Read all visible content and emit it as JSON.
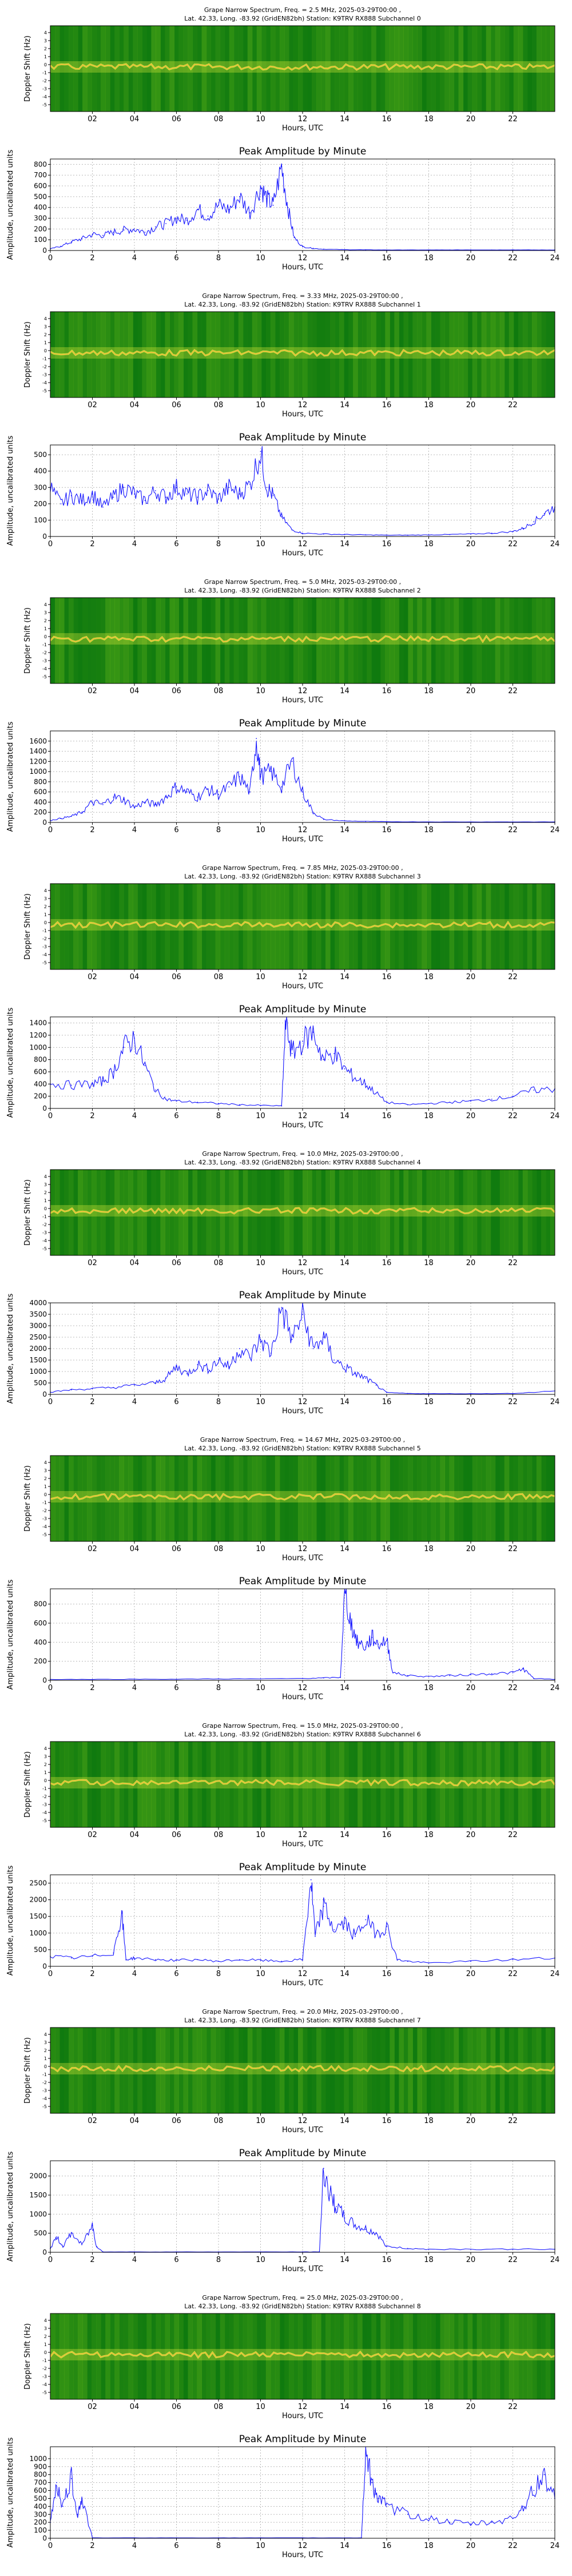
{
  "chart_data": [
    {
      "type": "heatmap",
      "title_line1": "Grape Narrow Spectrum, Freq. = 2.5 MHz, 2025-03-29T00:00 ,",
      "title_line2": "Lat.  42.33, Long. -83.92 (GridEN82bh) Station: K9TRV RX888 Subchannel 0",
      "ylabel": "Doppler Shift (Hz)",
      "xlabel": "Hours, UTC",
      "xticks": [
        "02",
        "04",
        "06",
        "08",
        "10",
        "12",
        "14",
        "16",
        "18",
        "20",
        "22"
      ],
      "yticks": [
        "4",
        "3",
        "2",
        "1",
        "0",
        "-1",
        "-2",
        "-3",
        "-4",
        "-5"
      ],
      "xlim": [
        0,
        24
      ],
      "ylim": [
        -5,
        5
      ]
    },
    {
      "type": "line",
      "title": "Peak Amplitude by Minute",
      "xlabel": "Hours, UTC",
      "ylabel": "Amplitude, uncalibrated units",
      "xlim": [
        0,
        24
      ],
      "ylim": [
        0,
        850
      ],
      "yticks": [
        0,
        100,
        200,
        300,
        400,
        500,
        600,
        700,
        800
      ],
      "xticks": [
        0,
        2,
        4,
        6,
        8,
        10,
        12,
        14,
        16,
        18,
        20,
        22,
        24
      ],
      "grid": true,
      "x": [
        0,
        0.5,
        1,
        1.5,
        2,
        2.5,
        3,
        3.5,
        4,
        4.5,
        5,
        5.5,
        6,
        6.5,
        7,
        7.5,
        8,
        8.5,
        9,
        9.5,
        10,
        10.3,
        10.6,
        11,
        11.3,
        11.6,
        12,
        12.5,
        13,
        14,
        15,
        16,
        17,
        18,
        19,
        20,
        21,
        22,
        23,
        24
      ],
      "y": [
        15,
        40,
        80,
        110,
        150,
        140,
        170,
        190,
        200,
        170,
        220,
        250,
        300,
        280,
        380,
        320,
        420,
        380,
        500,
        350,
        600,
        480,
        420,
        780,
        400,
        120,
        35,
        20,
        12,
        8,
        6,
        5,
        5,
        5,
        5,
        6,
        5,
        6,
        5,
        5
      ]
    },
    {
      "type": "heatmap",
      "title_line1": "Grape Narrow Spectrum, Freq. = 3.33 MHz, 2025-03-29T00:00 ,",
      "title_line2": "Lat.  42.33, Long. -83.92 (GridEN82bh) Station: K9TRV RX888 Subchannel 1",
      "ylabel": "Doppler Shift (Hz)",
      "xlabel": "Hours, UTC",
      "xticks": [
        "02",
        "04",
        "06",
        "08",
        "10",
        "12",
        "14",
        "16",
        "18",
        "20",
        "22"
      ],
      "yticks": [
        "4",
        "3",
        "2",
        "1",
        "0",
        "-1",
        "-2",
        "-3",
        "-4",
        "-5"
      ],
      "xlim": [
        0,
        24
      ],
      "ylim": [
        -5,
        5
      ]
    },
    {
      "type": "line",
      "title": "Peak Amplitude by Minute",
      "xlabel": "Hours, UTC",
      "ylabel": "Amplitude, uncalibrated units",
      "xlim": [
        0,
        24
      ],
      "ylim": [
        0,
        560
      ],
      "yticks": [
        0,
        100,
        200,
        300,
        400,
        500
      ],
      "xticks": [
        0,
        2,
        4,
        6,
        8,
        10,
        12,
        14,
        16,
        18,
        20,
        22,
        24
      ],
      "grid": true,
      "x": [
        0,
        0.5,
        1,
        1.5,
        2,
        2.5,
        3,
        3.5,
        4,
        4.5,
        5,
        5.5,
        6,
        6.5,
        7,
        7.5,
        8,
        8.5,
        9,
        9.5,
        10,
        10.3,
        10.6,
        11,
        11.5,
        12,
        13,
        14,
        15,
        16,
        17,
        18,
        19,
        20,
        21,
        22,
        22.5,
        23,
        23.5,
        24
      ],
      "y": [
        300,
        200,
        250,
        220,
        260,
        180,
        240,
        300,
        260,
        220,
        280,
        240,
        300,
        260,
        240,
        280,
        230,
        300,
        260,
        320,
        520,
        300,
        250,
        120,
        40,
        20,
        15,
        12,
        10,
        8,
        8,
        10,
        12,
        15,
        20,
        30,
        50,
        90,
        140,
        180
      ]
    },
    {
      "type": "heatmap",
      "title_line1": "Grape Narrow Spectrum, Freq. = 5.0 MHz, 2025-03-29T00:00 ,",
      "title_line2": "Lat.  42.33, Long. -83.92 (GridEN82bh) Station: K9TRV RX888 Subchannel 2",
      "ylabel": "Doppler Shift (Hz)",
      "xlabel": "Hours, UTC",
      "xticks": [
        "02",
        "04",
        "06",
        "08",
        "10",
        "12",
        "14",
        "16",
        "18",
        "20",
        "22"
      ],
      "yticks": [
        "4",
        "3",
        "2",
        "1",
        "0",
        "-1",
        "-2",
        "-3",
        "-4",
        "-5"
      ],
      "xlim": [
        0,
        24
      ],
      "ylim": [
        -5,
        5
      ]
    },
    {
      "type": "line",
      "title": "Peak Amplitude by Minute",
      "xlabel": "Hours, UTC",
      "ylabel": "Amplitude, uncalibrated units",
      "xlim": [
        0,
        24
      ],
      "ylim": [
        0,
        1800
      ],
      "yticks": [
        0,
        200,
        400,
        600,
        800,
        1000,
        1200,
        1400,
        1600
      ],
      "xticks": [
        0,
        2,
        4,
        6,
        8,
        10,
        12,
        14,
        16,
        18,
        20,
        22,
        24
      ],
      "grid": true,
      "x": [
        0,
        0.5,
        1,
        1.5,
        2,
        2.5,
        3,
        3.5,
        4,
        4.5,
        5,
        5.5,
        6,
        6.5,
        7,
        7.5,
        8,
        8.5,
        9,
        9.5,
        9.8,
        10,
        10.5,
        11,
        11.5,
        12,
        12.5,
        13,
        14,
        15,
        16,
        18,
        20,
        22,
        24
      ],
      "y": [
        40,
        80,
        120,
        200,
        400,
        350,
        500,
        450,
        300,
        400,
        350,
        500,
        700,
        600,
        500,
        650,
        550,
        700,
        900,
        600,
        1650,
        900,
        1000,
        700,
        1200,
        600,
        200,
        60,
        30,
        20,
        15,
        10,
        10,
        10,
        10
      ]
    },
    {
      "type": "heatmap",
      "title_line1": "Grape Narrow Spectrum, Freq. = 7.85 MHz, 2025-03-29T00:00 ,",
      "title_line2": "Lat.  42.33, Long. -83.92 (GridEN82bh) Station: K9TRV RX888 Subchannel 3",
      "ylabel": "Doppler Shift (Hz)",
      "xlabel": "Hours, UTC",
      "xticks": [
        "02",
        "04",
        "06",
        "08",
        "10",
        "12",
        "14",
        "16",
        "18",
        "20",
        "22"
      ],
      "yticks": [
        "4",
        "3",
        "2",
        "1",
        "0",
        "-1",
        "-2",
        "-3",
        "-4",
        "-5"
      ],
      "xlim": [
        0,
        24
      ],
      "ylim": [
        -5,
        5
      ]
    },
    {
      "type": "line",
      "title": "Peak Amplitude by Minute",
      "xlabel": "Hours, UTC",
      "ylabel": "Amplitude, uncalibrated units",
      "xlim": [
        0,
        24
      ],
      "ylim": [
        0,
        1500
      ],
      "yticks": [
        0,
        200,
        400,
        600,
        800,
        1000,
        1200,
        1400
      ],
      "xticks": [
        0,
        2,
        4,
        6,
        8,
        10,
        12,
        14,
        16,
        18,
        20,
        22,
        24
      ],
      "grid": true,
      "x": [
        0,
        1,
        2,
        2.5,
        3,
        3.5,
        4,
        4.5,
        5,
        5.5,
        6,
        7,
        8,
        9,
        10,
        11,
        11.2,
        11.5,
        12,
        12.5,
        13,
        13.5,
        14,
        14.5,
        15,
        15.5,
        16,
        17,
        18,
        19,
        20,
        21,
        22,
        23,
        24
      ],
      "y": [
        400,
        380,
        400,
        450,
        600,
        1000,
        1150,
        700,
        300,
        150,
        120,
        100,
        80,
        60,
        50,
        40,
        1420,
        900,
        1100,
        1250,
        800,
        900,
        650,
        500,
        400,
        250,
        100,
        60,
        80,
        100,
        120,
        150,
        200,
        300,
        320
      ]
    },
    {
      "type": "heatmap",
      "title_line1": "Grape Narrow Spectrum, Freq. = 10.0 MHz, 2025-03-29T00:00 ,",
      "title_line2": "Lat.  42.33, Long. -83.92 (GridEN82bh) Station: K9TRV RX888 Subchannel 4",
      "ylabel": "Doppler Shift (Hz)",
      "xlabel": "Hours, UTC",
      "xticks": [
        "02",
        "04",
        "06",
        "08",
        "10",
        "12",
        "14",
        "16",
        "18",
        "20",
        "22"
      ],
      "yticks": [
        "4",
        "3",
        "2",
        "1",
        "0",
        "-1",
        "-2",
        "-3",
        "-4",
        "-5"
      ],
      "xlim": [
        0,
        24
      ],
      "ylim": [
        -5,
        5
      ]
    },
    {
      "type": "line",
      "title": "Peak Amplitude by Minute",
      "xlabel": "Hours, UTC",
      "ylabel": "Amplitude, uncalibrated units",
      "xlim": [
        0,
        24
      ],
      "ylim": [
        0,
        4000
      ],
      "yticks": [
        0,
        500,
        1000,
        1500,
        2000,
        2500,
        3000,
        3500,
        4000
      ],
      "xticks": [
        0,
        2,
        4,
        6,
        8,
        10,
        12,
        14,
        16,
        18,
        20,
        22,
        24
      ],
      "grid": true,
      "x": [
        0,
        1,
        2,
        3,
        4,
        5,
        5.5,
        6,
        6.5,
        7,
        7.5,
        8,
        8.5,
        9,
        9.5,
        10,
        10.5,
        11,
        11.5,
        12,
        12.5,
        13,
        13.5,
        14,
        14.5,
        15,
        15.5,
        16,
        17,
        18,
        20,
        22,
        24
      ],
      "y": [
        100,
        200,
        250,
        300,
        400,
        500,
        700,
        1200,
        900,
        1300,
        1100,
        1500,
        1200,
        2000,
        1600,
        2400,
        1800,
        3800,
        2400,
        3500,
        2000,
        2500,
        1500,
        1200,
        900,
        700,
        400,
        80,
        40,
        30,
        30,
        40,
        150
      ]
    },
    {
      "type": "heatmap",
      "title_line1": "Grape Narrow Spectrum, Freq. = 14.67 MHz, 2025-03-29T00:00 ,",
      "title_line2": "Lat.  42.33, Long. -83.92 (GridEN82bh) Station: K9TRV RX888 Subchannel 5",
      "ylabel": "Doppler Shift (Hz)",
      "xlabel": "Hours, UTC",
      "xticks": [
        "02",
        "04",
        "06",
        "08",
        "10",
        "12",
        "14",
        "16",
        "18",
        "20",
        "22"
      ],
      "yticks": [
        "4",
        "3",
        "2",
        "1",
        "0",
        "-1",
        "-2",
        "-3",
        "-4",
        "-5"
      ],
      "xlim": [
        0,
        24
      ],
      "ylim": [
        -5,
        5
      ]
    },
    {
      "type": "line",
      "title": "Peak Amplitude by Minute",
      "xlabel": "Hours, UTC",
      "ylabel": "Amplitude, uncalibrated units",
      "xlim": [
        0,
        24
      ],
      "ylim": [
        0,
        960
      ],
      "yticks": [
        0,
        200,
        400,
        600,
        800
      ],
      "xticks": [
        0,
        2,
        4,
        6,
        8,
        10,
        12,
        14,
        16,
        18,
        20,
        22,
        24
      ],
      "grid": true,
      "x": [
        0,
        2,
        4,
        6,
        8,
        10,
        12,
        13,
        13.8,
        14,
        14.3,
        14.6,
        15,
        15.3,
        15.6,
        16,
        16.3,
        17,
        18,
        19,
        20,
        21,
        22,
        22.5,
        23,
        24
      ],
      "y": [
        10,
        10,
        12,
        12,
        15,
        15,
        20,
        25,
        30,
        920,
        600,
        400,
        350,
        450,
        380,
        420,
        80,
        50,
        40,
        50,
        60,
        70,
        80,
        120,
        20,
        10
      ]
    },
    {
      "type": "heatmap",
      "title_line1": "Grape Narrow Spectrum, Freq. = 15.0 MHz, 2025-03-29T00:00 ,",
      "title_line2": "Lat.  42.33, Long. -83.92 (GridEN82bh) Station: K9TRV RX888 Subchannel 6",
      "ylabel": "Doppler Shift (Hz)",
      "xlabel": "Hours, UTC",
      "xticks": [
        "02",
        "04",
        "06",
        "08",
        "10",
        "12",
        "14",
        "16",
        "18",
        "20",
        "22"
      ],
      "yticks": [
        "4",
        "3",
        "2",
        "1",
        "0",
        "-1",
        "-2",
        "-3",
        "-4",
        "-5"
      ],
      "xlim": [
        0,
        24
      ],
      "ylim": [
        -5,
        5
      ]
    },
    {
      "type": "line",
      "title": "Peak Amplitude by Minute",
      "xlabel": "Hours, UTC",
      "ylabel": "Amplitude, uncalibrated units",
      "xlim": [
        0,
        24
      ],
      "ylim": [
        0,
        2750
      ],
      "yticks": [
        0,
        500,
        1000,
        1500,
        2000,
        2500
      ],
      "xticks": [
        0,
        2,
        4,
        6,
        8,
        10,
        12,
        14,
        16,
        18,
        20,
        22,
        24
      ],
      "grid": true,
      "x": [
        0,
        1,
        2,
        3,
        3.4,
        3.6,
        4,
        5,
        6,
        7,
        8,
        9,
        10,
        11,
        12,
        12.4,
        12.6,
        13,
        13.5,
        14,
        14.5,
        15,
        15.5,
        16,
        16.5,
        17,
        18,
        20,
        22,
        24
      ],
      "y": [
        300,
        250,
        300,
        400,
        1600,
        200,
        250,
        200,
        180,
        200,
        150,
        200,
        180,
        150,
        200,
        2600,
        900,
        1800,
        1100,
        1300,
        900,
        1400,
        1000,
        1200,
        200,
        150,
        100,
        150,
        200,
        250
      ]
    },
    {
      "type": "heatmap",
      "title_line1": "Grape Narrow Spectrum, Freq. = 20.0 MHz, 2025-03-29T00:00 ,",
      "title_line2": "Lat.  42.33, Long. -83.92 (GridEN82bh) Station: K9TRV RX888 Subchannel 7",
      "ylabel": "Doppler Shift (Hz)",
      "xlabel": "Hours, UTC",
      "xticks": [
        "02",
        "04",
        "06",
        "08",
        "10",
        "12",
        "14",
        "16",
        "18",
        "20",
        "22"
      ],
      "yticks": [
        "4",
        "3",
        "2",
        "1",
        "0",
        "-1",
        "-2",
        "-3",
        "-4",
        "-5"
      ],
      "xlim": [
        0,
        24
      ],
      "ylim": [
        -5,
        5
      ]
    },
    {
      "type": "line",
      "title": "Peak Amplitude by Minute",
      "xlabel": "Hours, UTC",
      "ylabel": "Amplitude, uncalibrated units",
      "xlim": [
        0,
        24
      ],
      "ylim": [
        0,
        2400
      ],
      "yticks": [
        0,
        500,
        1000,
        1500,
        2000
      ],
      "xticks": [
        0,
        2,
        4,
        6,
        8,
        10,
        12,
        14,
        16,
        18,
        20,
        22,
        24
      ],
      "grid": true,
      "x": [
        0,
        0.3,
        0.6,
        1,
        1.5,
        2,
        2.2,
        2.5,
        4,
        6,
        8,
        10,
        12,
        12.8,
        13,
        13.3,
        13.6,
        14,
        14.5,
        15,
        15.5,
        16,
        17,
        18,
        20,
        22,
        24
      ],
      "y": [
        100,
        400,
        150,
        500,
        200,
        700,
        150,
        10,
        10,
        10,
        10,
        10,
        10,
        10,
        2200,
        1500,
        1200,
        900,
        700,
        600,
        500,
        150,
        100,
        80,
        80,
        80,
        80
      ]
    },
    {
      "type": "heatmap",
      "title_line1": "Grape Narrow Spectrum, Freq. = 25.0 MHz, 2025-03-29T00:00 ,",
      "title_line2": "Lat.  42.33, Long. -83.92 (GridEN82bh) Station: K9TRV RX888 Subchannel 8",
      "ylabel": "Doppler Shift (Hz)",
      "xlabel": "Hours, UTC",
      "xticks": [
        "02",
        "04",
        "06",
        "08",
        "10",
        "12",
        "14",
        "16",
        "18",
        "20",
        "22"
      ],
      "yticks": [
        "4",
        "3",
        "2",
        "1",
        "0",
        "-1",
        "-2",
        "-3",
        "-4",
        "-5"
      ],
      "xlim": [
        0,
        24
      ],
      "ylim": [
        -5,
        5
      ]
    },
    {
      "type": "line",
      "title": "Peak Amplitude by Minute",
      "xlabel": "Hours, UTC",
      "ylabel": "Amplitude, uncalibrated units",
      "xlim": [
        0,
        24
      ],
      "ylim": [
        0,
        1150
      ],
      "yticks": [
        0,
        100,
        200,
        300,
        400,
        500,
        600,
        700,
        800,
        900,
        1000
      ],
      "xticks": [
        0,
        2,
        4,
        6,
        8,
        10,
        12,
        14,
        16,
        18,
        20,
        22,
        24
      ],
      "grid": true,
      "x": [
        0,
        0.3,
        0.6,
        1,
        1.3,
        1.5,
        2,
        4,
        6,
        8,
        10,
        12,
        14,
        14.8,
        15,
        15.3,
        15.6,
        16,
        17,
        18,
        19,
        20,
        21,
        22,
        22.5,
        23,
        23.5,
        24
      ],
      "y": [
        200,
        700,
        400,
        750,
        300,
        500,
        5,
        5,
        5,
        5,
        5,
        5,
        5,
        5,
        1100,
        700,
        500,
        400,
        300,
        250,
        200,
        180,
        200,
        250,
        400,
        600,
        800,
        500
      ]
    }
  ]
}
